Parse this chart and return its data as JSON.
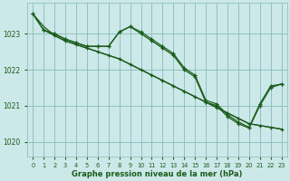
{
  "title": "Graphe pression niveau de la mer (hPa)",
  "bg_color": "#cce8e8",
  "grid_color": "#88bbbb",
  "line_color": "#1a5c1a",
  "text_color": "#1a5c1a",
  "xlim": [
    -0.5,
    23.5
  ],
  "ylim": [
    1019.6,
    1023.85
  ],
  "yticks": [
    1020,
    1021,
    1022,
    1023
  ],
  "xticks": [
    0,
    1,
    2,
    3,
    4,
    5,
    6,
    7,
    8,
    9,
    10,
    11,
    12,
    13,
    14,
    15,
    16,
    17,
    18,
    19,
    20,
    21,
    22,
    23
  ],
  "line1_x": [
    0,
    1,
    2,
    3,
    4,
    5,
    6,
    7,
    8,
    9,
    10,
    11,
    12,
    13,
    14,
    15,
    16,
    17,
    18,
    19,
    20,
    21,
    22,
    23
  ],
  "line1_y": [
    1023.55,
    1023.2,
    1022.95,
    1022.8,
    1022.7,
    1022.6,
    1022.5,
    1022.4,
    1022.3,
    1022.15,
    1022.0,
    1021.85,
    1021.7,
    1021.55,
    1021.4,
    1021.25,
    1021.1,
    1020.95,
    1020.8,
    1020.65,
    1020.5,
    1020.45,
    1020.4,
    1020.35
  ],
  "line2_x": [
    0,
    1,
    2,
    3,
    4,
    5,
    6,
    7,
    8,
    9,
    10,
    11,
    12,
    13,
    14,
    15,
    16,
    17,
    18,
    19,
    20,
    21,
    22,
    23
  ],
  "line2_y": [
    1023.55,
    1023.1,
    1023.0,
    1022.85,
    1022.75,
    1022.65,
    1022.65,
    1022.65,
    1023.05,
    1023.2,
    1023.05,
    1022.85,
    1022.65,
    1022.45,
    1022.05,
    1021.85,
    1021.15,
    1021.05,
    1020.75,
    1020.55,
    1020.4,
    1021.05,
    1021.55,
    1021.6
  ],
  "line3_x": [
    2,
    3,
    4,
    5,
    6,
    7,
    8,
    9,
    10,
    11,
    12,
    13,
    14,
    15,
    16,
    17,
    18,
    19,
    20,
    21,
    22,
    23
  ],
  "line3_y": [
    1023.0,
    1022.85,
    1022.75,
    1022.65,
    1022.65,
    1022.65,
    1023.05,
    1023.2,
    1023.0,
    1022.8,
    1022.6,
    1022.4,
    1022.0,
    1021.8,
    1021.1,
    1021.0,
    1020.7,
    1020.5,
    1020.38,
    1021.0,
    1021.5,
    1021.6
  ],
  "line4_x": [
    0,
    1,
    2,
    3,
    4,
    5,
    6,
    7,
    8,
    9,
    10,
    11,
    12,
    13,
    14,
    15,
    16,
    17,
    18,
    19,
    20,
    21,
    22,
    23
  ],
  "line4_y": [
    1023.55,
    1023.1,
    1022.95,
    1022.8,
    1022.7,
    1022.6,
    1022.5,
    1022.4,
    1022.3,
    1022.15,
    1022.0,
    1021.85,
    1021.7,
    1021.55,
    1021.4,
    1021.25,
    1021.1,
    1020.95,
    1020.8,
    1020.65,
    1020.5,
    1020.45,
    1020.4,
    1020.35
  ]
}
